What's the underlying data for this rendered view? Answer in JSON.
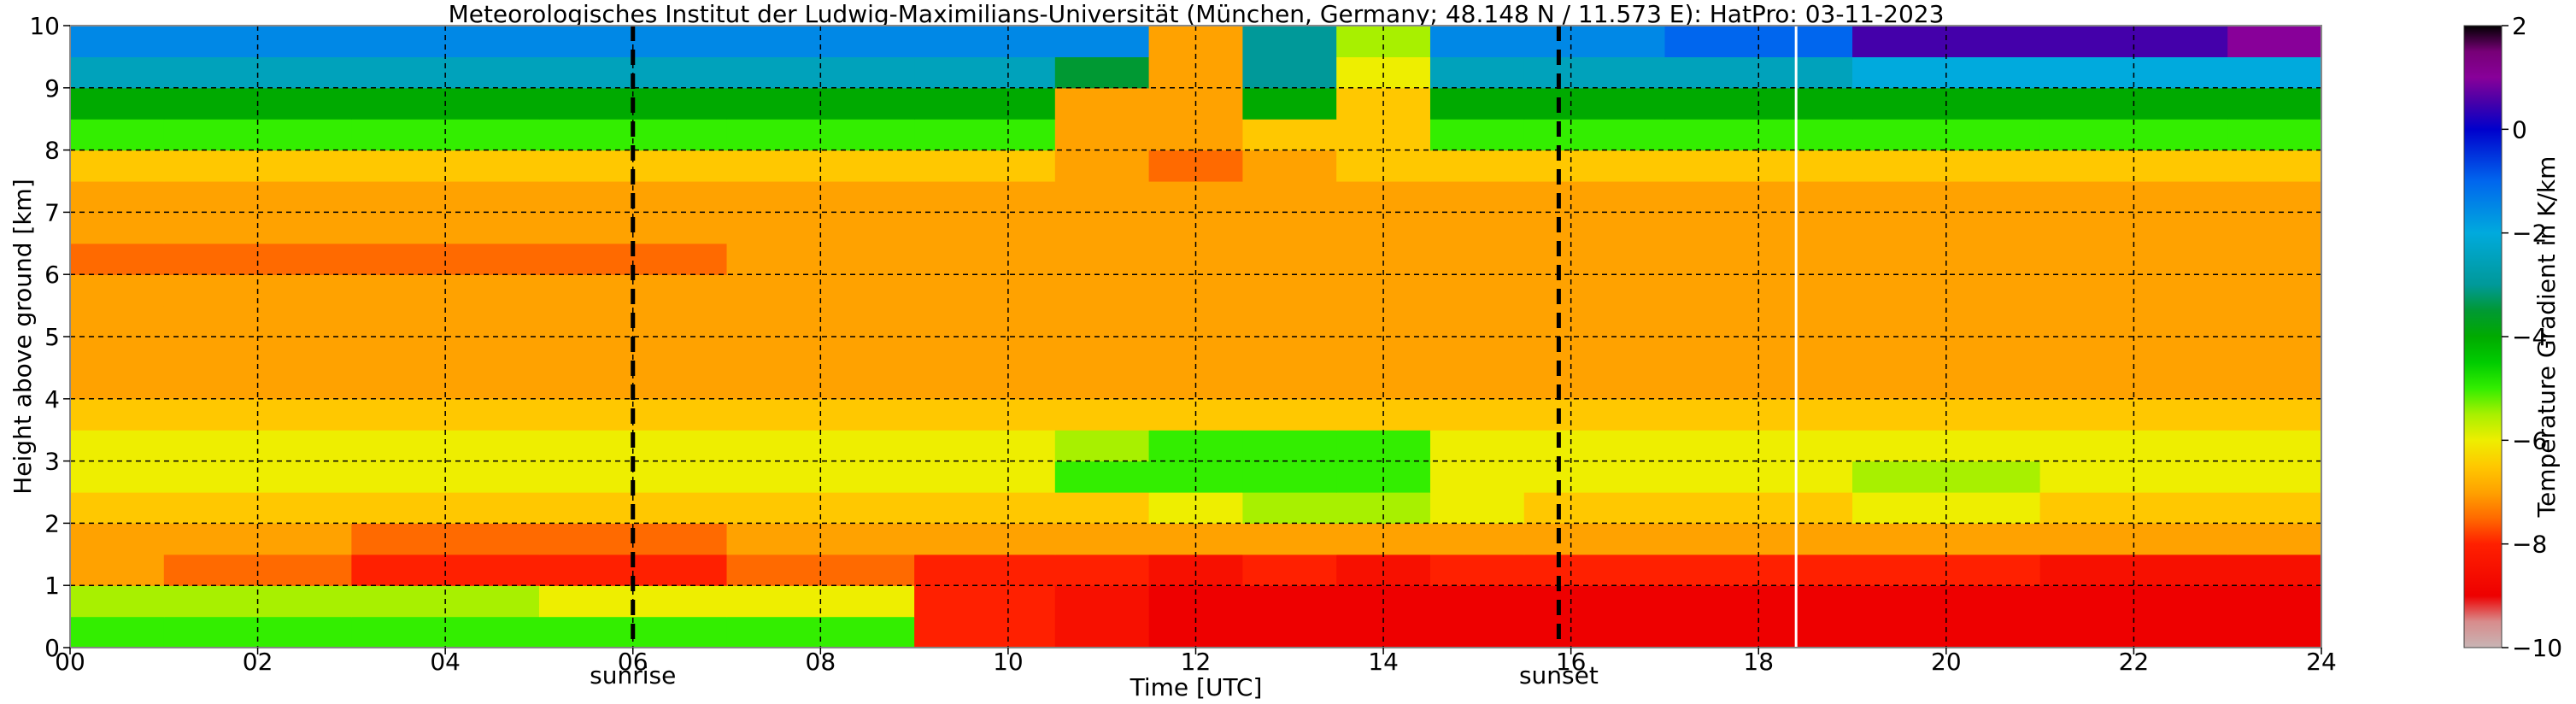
{
  "chart_data": [
    {
      "type": "heatmap",
      "title": "Meteorologisches Institut der Ludwig-Maximilians-Universität (München, Germany; 48.148 N / 11.573 E):    HatPro: 03-11-2023",
      "xlabel": "Time [UTC]",
      "ylabel": "Height above ground [km]",
      "xlim": [
        0,
        24
      ],
      "ylim": [
        0,
        10
      ],
      "x_ticks": [
        "00",
        "02",
        "04",
        "06",
        "08",
        "10",
        "12",
        "14",
        "16",
        "18",
        "20",
        "22",
        "24"
      ],
      "y_ticks": [
        "0",
        "1",
        "2",
        "3",
        "4",
        "5",
        "6",
        "7",
        "8",
        "9",
        "10"
      ],
      "grid": true,
      "annotations": [
        {
          "label": "sunrise",
          "x": 6.0
        },
        {
          "label": "sunset",
          "x": 15.87
        }
      ],
      "data_gap_x": 18.4,
      "height_km": [
        0.25,
        0.75,
        1.25,
        1.75,
        2.25,
        2.75,
        3.25,
        3.75,
        4.25,
        4.75,
        5.25,
        5.75,
        6.25,
        6.75,
        7.25,
        7.75,
        8.25,
        8.75,
        9.25,
        9.75
      ],
      "time_utc": [
        0,
        2,
        4,
        6,
        8,
        10,
        11,
        12,
        13,
        14,
        15,
        16,
        18,
        20,
        22,
        24
      ],
      "values": [
        [
          -5.0,
          -5.0,
          -5.0,
          -5.0,
          -5.0,
          -8.0,
          -8.5,
          -9.0,
          -9.0,
          -9.0,
          -9.0,
          -9.0,
          -9.0,
          -9.0,
          -9.0,
          -9.0
        ],
        [
          -5.5,
          -5.5,
          -5.5,
          -6.0,
          -6.0,
          -8.0,
          -8.5,
          -9.0,
          -9.0,
          -9.0,
          -9.0,
          -9.0,
          -9.0,
          -9.0,
          -9.0,
          -9.0
        ],
        [
          -7.0,
          -7.5,
          -8.0,
          -8.0,
          -7.5,
          -8.0,
          -8.0,
          -8.5,
          -8.0,
          -8.5,
          -8.0,
          -8.0,
          -8.0,
          -8.0,
          -8.5,
          -8.5
        ],
        [
          -7.0,
          -7.0,
          -7.5,
          -7.5,
          -7.0,
          -7.0,
          -7.0,
          -7.0,
          -7.0,
          -7.0,
          -7.0,
          -7.0,
          -7.0,
          -7.0,
          -7.0,
          -7.0
        ],
        [
          -6.5,
          -6.5,
          -6.5,
          -6.5,
          -6.5,
          -6.5,
          -6.5,
          -6.0,
          -5.5,
          -5.5,
          -6.0,
          -6.5,
          -6.5,
          -6.0,
          -6.5,
          -6.5
        ],
        [
          -6.0,
          -6.0,
          -6.0,
          -6.0,
          -6.0,
          -6.0,
          -5.0,
          -5.0,
          -5.0,
          -5.0,
          -6.0,
          -6.0,
          -6.0,
          -5.5,
          -6.0,
          -6.0
        ],
        [
          -6.0,
          -6.0,
          -6.0,
          -6.0,
          -6.0,
          -6.0,
          -5.5,
          -5.0,
          -5.0,
          -5.0,
          -6.0,
          -6.0,
          -6.0,
          -6.0,
          -6.0,
          -6.0
        ],
        [
          -6.5,
          -6.5,
          -6.5,
          -6.5,
          -6.5,
          -6.5,
          -6.5,
          -6.5,
          -6.5,
          -6.5,
          -6.5,
          -6.5,
          -6.5,
          -6.5,
          -6.5,
          -6.5
        ],
        [
          -7.0,
          -7.0,
          -7.0,
          -7.0,
          -7.0,
          -7.0,
          -7.0,
          -7.0,
          -7.0,
          -7.0,
          -7.0,
          -7.0,
          -7.0,
          -7.0,
          -7.0,
          -7.0
        ],
        [
          -7.0,
          -7.0,
          -7.0,
          -7.0,
          -7.0,
          -7.0,
          -7.0,
          -7.0,
          -7.0,
          -7.0,
          -7.0,
          -7.0,
          -7.0,
          -7.0,
          -7.0,
          -7.0
        ],
        [
          -7.0,
          -7.0,
          -7.0,
          -7.0,
          -7.0,
          -7.0,
          -7.0,
          -7.0,
          -7.0,
          -7.0,
          -7.0,
          -7.0,
          -7.0,
          -7.0,
          -7.0,
          -7.0
        ],
        [
          -7.0,
          -7.0,
          -7.0,
          -7.0,
          -7.0,
          -7.0,
          -7.0,
          -7.0,
          -7.0,
          -7.0,
          -7.0,
          -7.0,
          -7.0,
          -7.0,
          -7.0,
          -7.0
        ],
        [
          -7.5,
          -7.5,
          -7.5,
          -7.5,
          -7.0,
          -7.0,
          -7.0,
          -7.0,
          -7.0,
          -7.0,
          -7.0,
          -7.0,
          -7.0,
          -7.0,
          -7.0,
          -7.0
        ],
        [
          -7.0,
          -7.0,
          -7.0,
          -7.0,
          -7.0,
          -7.0,
          -7.0,
          -7.0,
          -7.0,
          -7.0,
          -7.0,
          -7.0,
          -7.0,
          -7.0,
          -7.0,
          -7.0
        ],
        [
          -7.0,
          -7.0,
          -7.0,
          -7.0,
          -7.0,
          -7.0,
          -7.0,
          -7.0,
          -7.0,
          -7.0,
          -7.0,
          -7.0,
          -7.0,
          -7.0,
          -7.0,
          -7.0
        ],
        [
          -6.5,
          -6.5,
          -6.5,
          -6.5,
          -6.5,
          -6.5,
          -7.0,
          -7.5,
          -7.0,
          -6.5,
          -6.5,
          -6.5,
          -6.5,
          -6.5,
          -6.5,
          -6.5
        ],
        [
          -5.0,
          -5.0,
          -5.0,
          -5.0,
          -5.0,
          -5.0,
          -7.0,
          -7.0,
          -6.5,
          -6.5,
          -5.0,
          -5.0,
          -5.0,
          -5.0,
          -5.0,
          -5.0
        ],
        [
          -4.0,
          -4.0,
          -4.0,
          -4.0,
          -4.0,
          -4.0,
          -7.0,
          -7.0,
          -4.0,
          -6.5,
          -4.0,
          -4.0,
          -4.0,
          -4.0,
          -4.0,
          -4.0
        ],
        [
          -2.5,
          -2.5,
          -2.5,
          -2.5,
          -2.5,
          -2.5,
          -3.5,
          -7.0,
          -3.0,
          -6.0,
          -2.5,
          -2.5,
          -2.5,
          -2.0,
          -2.0,
          -2.0
        ],
        [
          -1.5,
          -1.5,
          -1.5,
          -1.5,
          -1.5,
          -1.5,
          -1.5,
          -7.0,
          -3.0,
          -5.5,
          -1.5,
          -1.5,
          -1.0,
          0.5,
          0.5,
          1.0
        ]
      ]
    },
    {
      "type": "colorbar",
      "label": "Temperature Gradient in K/km",
      "ticks": [
        "2",
        "0",
        "−2",
        "−4",
        "−6",
        "−8",
        "−10"
      ],
      "range": [
        -10,
        2
      ],
      "colormap": [
        [
          -10.0,
          "#c8b4b4"
        ],
        [
          -9.5,
          "#d88c8c"
        ],
        [
          -9.0,
          "#ee0000"
        ],
        [
          -8.0,
          "#ff2000"
        ],
        [
          -7.5,
          "#ff6a00"
        ],
        [
          -7.0,
          "#ffa200"
        ],
        [
          -6.5,
          "#ffc800"
        ],
        [
          -6.0,
          "#eeee00"
        ],
        [
          -5.5,
          "#a8f000"
        ],
        [
          -5.0,
          "#33ee00"
        ],
        [
          -4.5,
          "#00cc00"
        ],
        [
          -4.0,
          "#00aa00"
        ],
        [
          -3.5,
          "#009933"
        ],
        [
          -3.0,
          "#009999"
        ],
        [
          -2.0,
          "#00aadd"
        ],
        [
          -1.0,
          "#0066ee"
        ],
        [
          0.0,
          "#0000cc"
        ],
        [
          0.5,
          "#4400aa"
        ],
        [
          1.0,
          "#880099"
        ],
        [
          1.5,
          "#770077"
        ],
        [
          2.0,
          "#000000"
        ]
      ]
    }
  ]
}
